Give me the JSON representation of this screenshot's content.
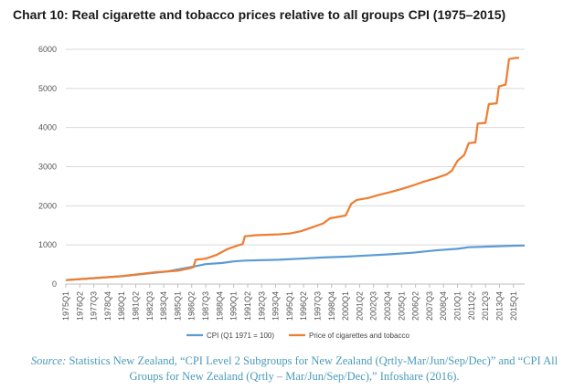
{
  "page": {
    "source_prefix": "Source:",
    "source_text": " Statistics New Zealand, “CPI Level 2 Subgroups for New Zealand (Qrtly-Mar/Jun/Sep/Dec)” and “CPI All Groups for New Zealand (Qrtly – Mar/Jun/Sep/Dec),” Infoshare (2016)."
  },
  "chart_data": {
    "type": "line",
    "title": "Chart 10: Real cigarette and tobacco prices relative to all groups CPI (1975–2015)",
    "xlabel": "",
    "ylabel": "",
    "ylim": [
      0,
      6000
    ],
    "yticks": [
      0,
      1000,
      2000,
      3000,
      4000,
      5000,
      6000
    ],
    "grid": true,
    "legend_position": "bottom",
    "x_start_year": 1975,
    "x_end_year": 2016,
    "x_tick_labels": [
      "1975Q1",
      "1976Q2",
      "1977Q3",
      "1978Q4",
      "1980Q1",
      "1981Q2",
      "1982Q3",
      "1983Q4",
      "1985Q1",
      "1986Q2",
      "1987Q3",
      "1988Q4",
      "1990Q1",
      "1991Q2",
      "1992Q3",
      "1993Q4",
      "1995Q1",
      "1996Q2",
      "1997Q3",
      "1998Q4",
      "2000Q1",
      "2001Q2",
      "2002Q3",
      "2003Q4",
      "2005Q1",
      "2006Q2",
      "2007Q3",
      "2008Q4",
      "2010Q1",
      "2011Q2",
      "2012Q3",
      "2013Q4",
      "2015Q1"
    ],
    "series": [
      {
        "name": "CPI (Q1 1971 = 100)",
        "color": "#5b9bd5",
        "points": [
          [
            1975,
            100
          ],
          [
            1980,
            200
          ],
          [
            1984,
            320
          ],
          [
            1986.5,
            450
          ],
          [
            1987.5,
            510
          ],
          [
            1989,
            540
          ],
          [
            1990,
            580
          ],
          [
            1991,
            600
          ],
          [
            1994,
            620
          ],
          [
            1996,
            650
          ],
          [
            1998,
            680
          ],
          [
            2000,
            700
          ],
          [
            2002,
            730
          ],
          [
            2004,
            760
          ],
          [
            2006,
            800
          ],
          [
            2008,
            860
          ],
          [
            2010,
            900
          ],
          [
            2011,
            940
          ],
          [
            2013,
            960
          ],
          [
            2015,
            980
          ],
          [
            2016,
            985
          ]
        ]
      },
      {
        "name": "Price of cigarettes and tobacco",
        "color": "#ed7d31",
        "points": [
          [
            1975,
            100
          ],
          [
            1977,
            140
          ],
          [
            1980,
            200
          ],
          [
            1983,
            300
          ],
          [
            1985,
            340
          ],
          [
            1986,
            400
          ],
          [
            1986.4,
            430
          ],
          [
            1986.6,
            620
          ],
          [
            1987.5,
            650
          ],
          [
            1988.5,
            750
          ],
          [
            1989.5,
            900
          ],
          [
            1990.5,
            1000
          ],
          [
            1990.8,
            1020
          ],
          [
            1991,
            1220
          ],
          [
            1992,
            1250
          ],
          [
            1994,
            1270
          ],
          [
            1995,
            1290
          ],
          [
            1996,
            1350
          ],
          [
            1997,
            1450
          ],
          [
            1998,
            1550
          ],
          [
            1998.6,
            1680
          ],
          [
            2000,
            1750
          ],
          [
            2000.5,
            2050
          ],
          [
            2001,
            2150
          ],
          [
            2002,
            2200
          ],
          [
            2003,
            2280
          ],
          [
            2004,
            2350
          ],
          [
            2005,
            2430
          ],
          [
            2006,
            2520
          ],
          [
            2007,
            2620
          ],
          [
            2008,
            2700
          ],
          [
            2009,
            2800
          ],
          [
            2009.5,
            2900
          ],
          [
            2010,
            3150
          ],
          [
            2010.6,
            3300
          ],
          [
            2011,
            3600
          ],
          [
            2011.6,
            3620
          ],
          [
            2011.8,
            4100
          ],
          [
            2012.5,
            4120
          ],
          [
            2012.8,
            4600
          ],
          [
            2013.5,
            4620
          ],
          [
            2013.7,
            5050
          ],
          [
            2014.3,
            5100
          ],
          [
            2014.6,
            5750
          ],
          [
            2015.2,
            5780
          ],
          [
            2015.5,
            5780
          ]
        ]
      }
    ]
  }
}
